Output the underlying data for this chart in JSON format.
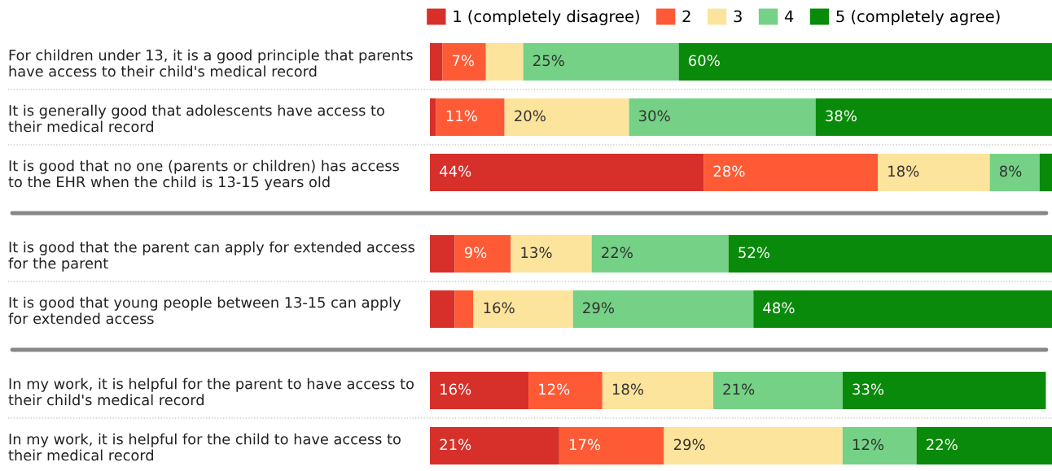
{
  "chart_data": [
    {
      "type": "bar",
      "orientation": "horizontal",
      "stacked": true,
      "legend": "top right",
      "categories": [
        "For children under 13, it is a good principle that parents\nhave access to their child's medical record",
        "It is generally good that adolescents have access to\ntheir medical record",
        "It is good that no one (parents or children) has access\nto the EHR when the child is 13-15 years old"
      ],
      "series": [
        {
          "name": "1 (completely disagree)",
          "color": "#d7302b",
          "values": [
            2,
            1,
            44
          ],
          "value_labels": [
            null,
            null,
            "44%"
          ]
        },
        {
          "name": "2",
          "color": "#ff5a36",
          "values": [
            7,
            11,
            28
          ],
          "value_labels": [
            "7%",
            "11%",
            "28%"
          ]
        },
        {
          "name": "3",
          "color": "#fde49c",
          "values": [
            6,
            20,
            18
          ],
          "value_labels": [
            null,
            "20%",
            "18%"
          ]
        },
        {
          "name": "4",
          "color": "#74d185",
          "values": [
            25,
            30,
            8
          ],
          "value_labels": [
            "25%",
            "30%",
            "8%"
          ]
        },
        {
          "name": "5 (completely agree)",
          "color": "#0a8a0a",
          "values": [
            60,
            38,
            2
          ],
          "value_labels": [
            "60%",
            "38%",
            null
          ]
        }
      ]
    },
    {
      "type": "bar",
      "orientation": "horizontal",
      "stacked": true,
      "categories": [
        "It is good that the parent can apply for extended access\nfor the parent",
        "It is good that young people between 13-15 can apply\nfor extended access"
      ],
      "series": [
        {
          "color": "#d7302b",
          "values": [
            4,
            4
          ],
          "value_labels": [
            null,
            null
          ]
        },
        {
          "color": "#ff5a36",
          "values": [
            9,
            3
          ],
          "value_labels": [
            "9%",
            null
          ]
        },
        {
          "color": "#fde49c",
          "values": [
            13,
            16
          ],
          "value_labels": [
            "13%",
            "16%"
          ]
        },
        {
          "color": "#74d185",
          "values": [
            22,
            29
          ],
          "value_labels": [
            "22%",
            "29%"
          ]
        },
        {
          "color": "#0a8a0a",
          "values": [
            52,
            48
          ],
          "value_labels": [
            "52%",
            "48%"
          ]
        }
      ]
    },
    {
      "type": "bar",
      "orientation": "horizontal",
      "stacked": true,
      "categories": [
        "In my work, it is helpful for the parent to have access to\ntheir child's medical record",
        "In my work, it is helpful for the child to have access to\ntheir medical record"
      ],
      "series": [
        {
          "color": "#d7302b",
          "values": [
            16,
            21
          ],
          "value_labels": [
            "16%",
            "21%"
          ]
        },
        {
          "color": "#ff5a36",
          "values": [
            12,
            17
          ],
          "value_labels": [
            "12%",
            "17%"
          ]
        },
        {
          "color": "#fde49c",
          "values": [
            18,
            29
          ],
          "value_labels": [
            "18%",
            "29%"
          ]
        },
        {
          "color": "#74d185",
          "values": [
            21,
            12
          ],
          "value_labels": [
            "21%",
            "12%"
          ]
        },
        {
          "color": "#0a8a0a",
          "values": [
            33,
            22
          ],
          "value_labels": [
            "33%",
            "22%"
          ]
        }
      ]
    }
  ]
}
